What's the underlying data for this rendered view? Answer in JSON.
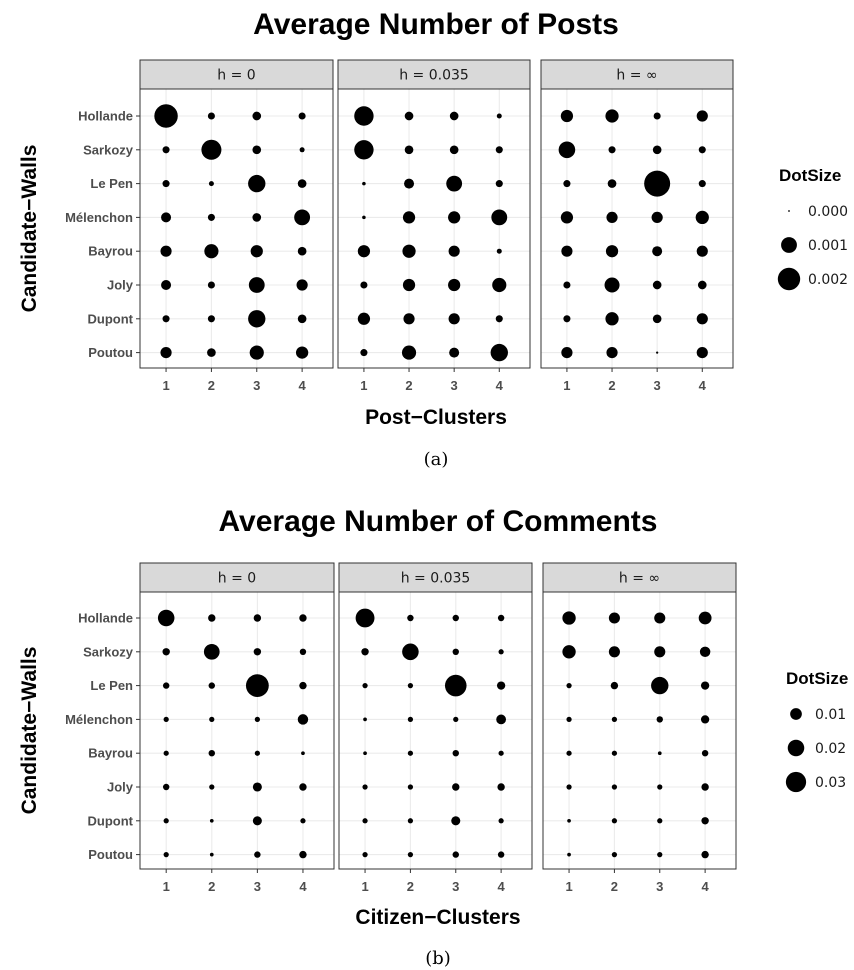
{
  "chart_data": [
    {
      "type": "scatter",
      "title": "Average Number of Posts",
      "xlabel": "Post−Clusters",
      "ylabel": "Candidate−Walls",
      "caption": "(a)",
      "facets": [
        "h = 0",
        "h = 0.035",
        "h = ∞"
      ],
      "x_categories": [
        "1",
        "2",
        "3",
        "4"
      ],
      "y_categories": [
        "Hollande",
        "Sarkozy",
        "Le Pen",
        "Mélenchon",
        "Bayrou",
        "Joly",
        "Dupont",
        "Poutou"
      ],
      "legend": {
        "title": "DotSize",
        "position": "right",
        "entries": [
          {
            "label": "0.000",
            "value": 0.0
          },
          {
            "label": "0.001",
            "value": 0.001
          },
          {
            "label": "0.002",
            "value": 0.002
          }
        ]
      },
      "size_range": [
        0.0,
        0.0027
      ],
      "grid": true,
      "series": [
        {
          "values": [
            [
              0.0022,
              0.0002,
              0.0003,
              0.0002
            ],
            [
              0.0002,
              0.0016,
              0.0003,
              0.0001
            ],
            [
              0.0002,
              0.0001,
              0.0012,
              0.0003
            ],
            [
              0.0004,
              0.0002,
              0.0003,
              0.001
            ],
            [
              0.0005,
              0.0008,
              0.0006,
              0.0003
            ],
            [
              0.0004,
              0.0002,
              0.001,
              0.0005
            ],
            [
              0.0002,
              0.0002,
              0.0012,
              0.0003
            ],
            [
              0.0005,
              0.0003,
              0.0008,
              0.0006
            ]
          ]
        },
        {
          "values": [
            [
              0.0015,
              0.0003,
              0.0003,
              0.0001
            ],
            [
              0.0015,
              0.0003,
              0.0003,
              0.0002
            ],
            [
              5e-05,
              0.0004,
              0.001,
              0.0002
            ],
            [
              5e-05,
              0.0006,
              0.0006,
              0.001
            ],
            [
              0.0006,
              0.0007,
              0.0005,
              0.0001
            ],
            [
              0.0002,
              0.0006,
              0.0006,
              0.0008
            ],
            [
              0.0006,
              0.0005,
              0.0005,
              0.0002
            ],
            [
              0.0002,
              0.0008,
              0.0004,
              0.0012
            ]
          ]
        },
        {
          "values": [
            [
              0.0006,
              0.0007,
              0.0002,
              0.0005
            ],
            [
              0.0011,
              0.0002,
              0.0003,
              0.0002
            ],
            [
              0.0002,
              0.0003,
              0.0027,
              0.0002
            ],
            [
              0.0006,
              0.0005,
              0.0005,
              0.0007
            ],
            [
              0.0005,
              0.0006,
              0.0004,
              0.0005
            ],
            [
              0.0002,
              0.0009,
              0.0003,
              0.0003
            ],
            [
              0.0002,
              0.0007,
              0.0003,
              0.0005
            ],
            [
              0.0005,
              0.0005,
              2e-05,
              0.0005
            ]
          ]
        }
      ]
    },
    {
      "type": "scatter",
      "title": "Average Number of Comments",
      "xlabel": "Citizen−Clusters",
      "ylabel": "Candidate−Walls",
      "caption": "(b)",
      "facets": [
        "h = 0",
        "h = 0.035",
        "h = ∞"
      ],
      "x_categories": [
        "1",
        "2",
        "3",
        "4"
      ],
      "y_categories": [
        "Hollande",
        "Sarkozy",
        "Le Pen",
        "Mélenchon",
        "Bayrou",
        "Joly",
        "Dupont",
        "Poutou"
      ],
      "legend": {
        "title": "DotSize",
        "position": "right",
        "entries": [
          {
            "label": "0.01",
            "value": 0.01
          },
          {
            "label": "0.02",
            "value": 0.02
          },
          {
            "label": "0.03",
            "value": 0.03
          }
        ]
      },
      "size_range": [
        0.0,
        0.04
      ],
      "grid": true,
      "series": [
        {
          "values": [
            [
              0.02,
              0.004,
              0.004,
              0.004
            ],
            [
              0.004,
              0.018,
              0.004,
              0.003
            ],
            [
              0.003,
              0.003,
              0.038,
              0.004
            ],
            [
              0.002,
              0.002,
              0.002,
              0.008
            ],
            [
              0.002,
              0.003,
              0.002,
              0.001
            ],
            [
              0.003,
              0.002,
              0.006,
              0.004
            ],
            [
              0.002,
              0.001,
              0.006,
              0.002
            ],
            [
              0.002,
              0.001,
              0.003,
              0.004
            ]
          ]
        },
        {
          "values": [
            [
              0.026,
              0.003,
              0.003,
              0.003
            ],
            [
              0.004,
              0.02,
              0.003,
              0.002
            ],
            [
              0.002,
              0.002,
              0.034,
              0.005
            ],
            [
              0.001,
              0.002,
              0.002,
              0.007
            ],
            [
              0.001,
              0.002,
              0.003,
              0.002
            ],
            [
              0.002,
              0.002,
              0.004,
              0.004
            ],
            [
              0.002,
              0.002,
              0.006,
              0.002
            ],
            [
              0.002,
              0.002,
              0.003,
              0.003
            ]
          ]
        },
        {
          "values": [
            [
              0.013,
              0.009,
              0.009,
              0.012
            ],
            [
              0.013,
              0.009,
              0.009,
              0.008
            ],
            [
              0.002,
              0.004,
              0.022,
              0.005
            ],
            [
              0.002,
              0.002,
              0.003,
              0.005
            ],
            [
              0.002,
              0.002,
              0.001,
              0.003
            ],
            [
              0.002,
              0.002,
              0.002,
              0.004
            ],
            [
              0.001,
              0.002,
              0.002,
              0.004
            ],
            [
              0.001,
              0.002,
              0.002,
              0.004
            ]
          ]
        }
      ]
    }
  ]
}
